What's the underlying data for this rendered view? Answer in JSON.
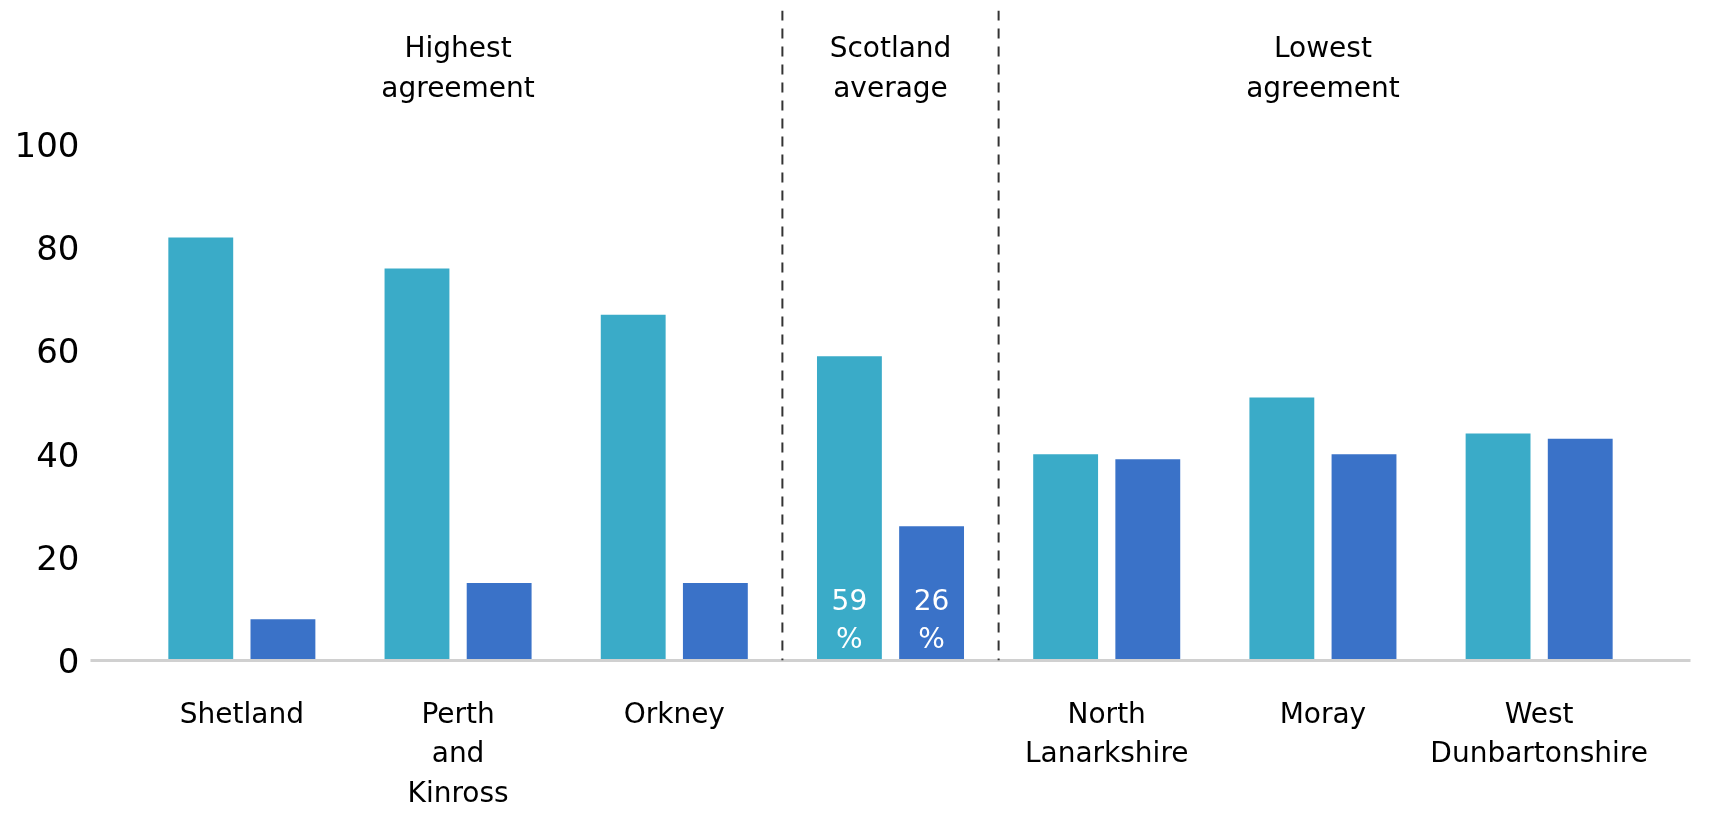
{
  "chart_data": {
    "type": "bar",
    "categories": [
      "Shetland",
      "Perth and Kinross",
      "Orkney",
      null,
      "North Lanarkshire",
      "Moray",
      "West Dunbartonshire"
    ],
    "series": [
      {
        "color": "#3aabc8",
        "values": [
          82,
          76,
          67,
          59,
          40,
          51,
          44
        ],
        "value_labels": [
          null,
          null,
          null,
          "59%",
          null,
          null,
          null
        ]
      },
      {
        "color": "#3a72c8",
        "values": [
          8,
          15,
          15,
          26,
          39,
          40,
          43
        ],
        "value_labels": [
          null,
          null,
          null,
          "26%",
          null,
          null,
          null
        ]
      }
    ],
    "ylim": [
      0,
      126
    ],
    "yticks": [
      0,
      20,
      40,
      60,
      80,
      100
    ],
    "grid": false,
    "annotations": [
      "Highest agreement",
      "Scotland average",
      "Lowest agreement"
    ]
  }
}
